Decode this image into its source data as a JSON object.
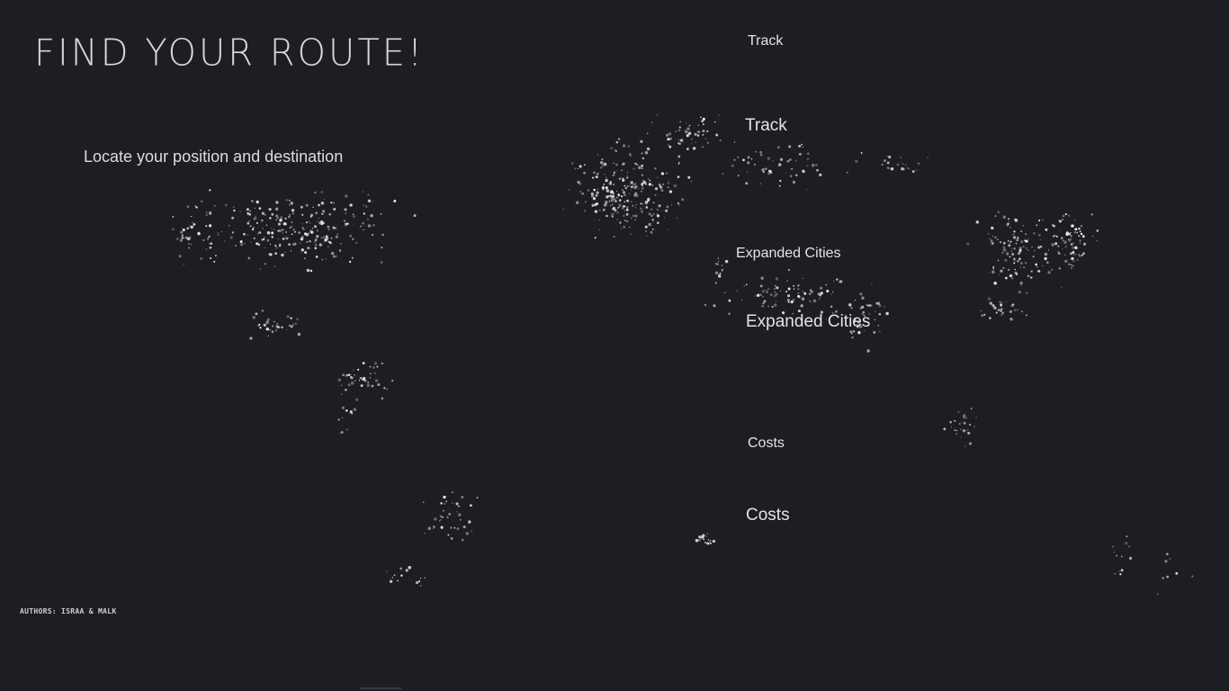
{
  "app": {
    "title": "FIND YOUR ROUTE!",
    "subtitle": "Locate your position and destination",
    "authors": "AUTHORS: ISRAA & MALK"
  },
  "labels": {
    "track_small": "Track",
    "track_large": "Track",
    "expanded_small": "Expanded Cities",
    "expanded_large": "Expanded Cities",
    "costs_small": "Costs",
    "costs_large": "Costs"
  },
  "colors": {
    "background": "#1d1e21",
    "city_lights": "#ffffff",
    "text": "#e4e4e4"
  },
  "map": {
    "type": "world-city-lights"
  }
}
